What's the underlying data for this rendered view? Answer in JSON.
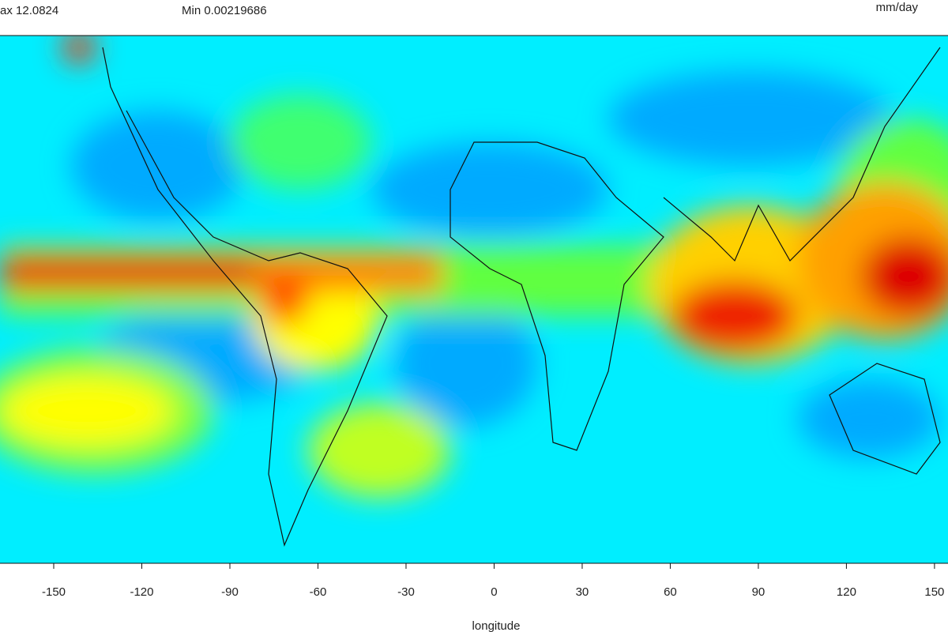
{
  "chart_data": {
    "type": "map",
    "annotations": {
      "max": "ax 12.0824",
      "min": "Min 0.00219686",
      "units": "mm/day"
    },
    "xlabel": "longitude",
    "xlim": [
      -168.3,
      154.6
    ],
    "xticks": [
      -150,
      -120,
      -90,
      -60,
      -30,
      0,
      30,
      60,
      90,
      120,
      150
    ]
  }
}
